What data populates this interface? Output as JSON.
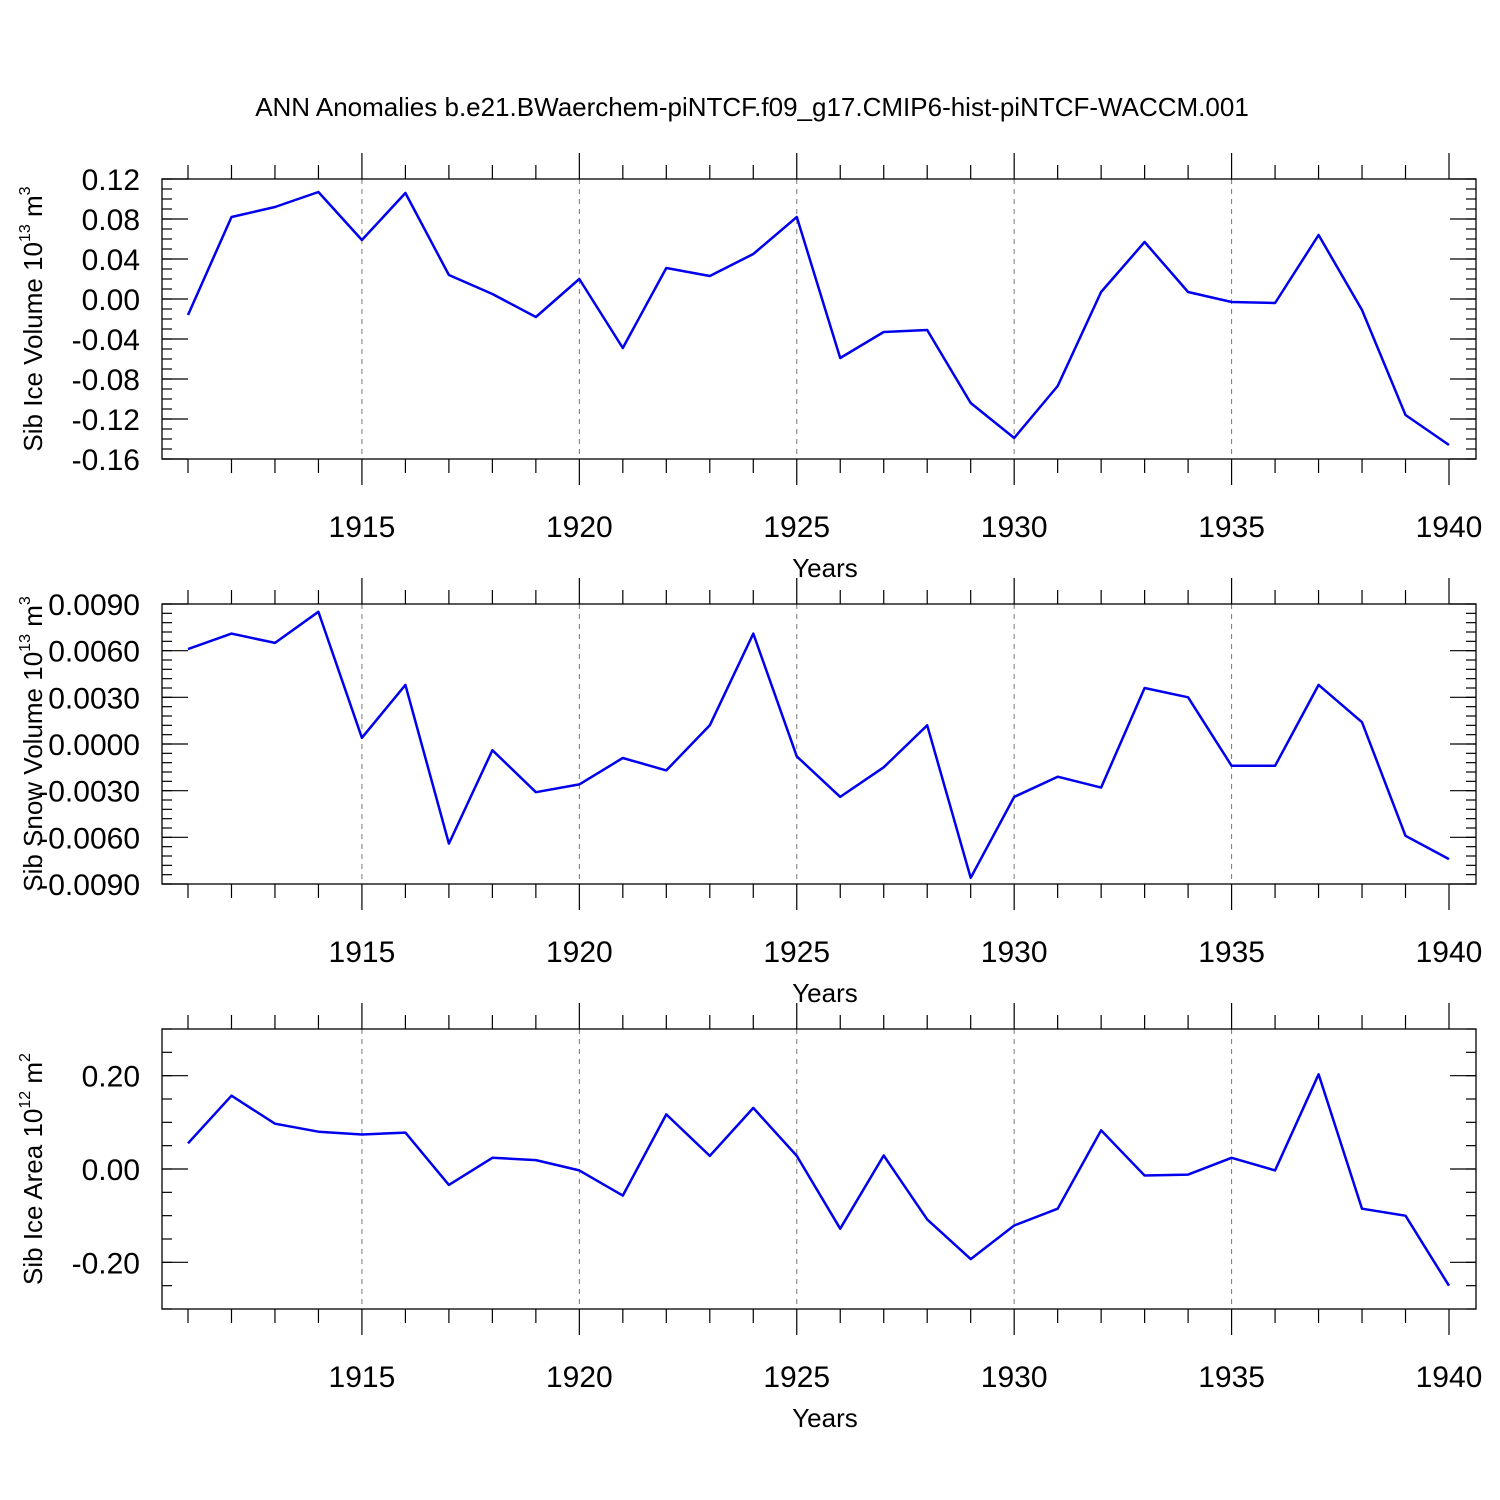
{
  "figure_title": "ANN Anomalies b.e21.BWaerchem-piNTCF.f09_g17.CMIP6-hist-piNTCF-WACCM.001",
  "chart_data": [
    {
      "type": "line",
      "ylabel": "Sib Ice Volume",
      "ylabel_multiplier": "10",
      "ylabel_exponent": "13",
      "ylabel_unit": "m",
      "ylabel_unit_exponent": "3",
      "xlabel": "Years",
      "xlim": [
        1911,
        1940
      ],
      "ylim": [
        -0.16,
        0.12
      ],
      "major_xticks": [
        1915,
        1920,
        1925,
        1930,
        1935,
        1940
      ],
      "major_xtick_labels": [
        "1915",
        "1920",
        "1925",
        "1930",
        "1935",
        "1940"
      ],
      "major_yticks": [
        0.12,
        0.08,
        0.04,
        0.0,
        -0.04,
        -0.08,
        -0.12,
        -0.16
      ],
      "major_ytick_labels": [
        "0.12",
        "0.08",
        "0.04",
        "0.00",
        "-0.04",
        "-0.08",
        "-0.12",
        "-0.16"
      ],
      "minor_ytick_step": 0.01,
      "grid": "dashed vertical at major x ticks",
      "color": "#0000ee",
      "x": [
        1911,
        1912,
        1913,
        1914,
        1915,
        1916,
        1917,
        1918,
        1919,
        1920,
        1921,
        1922,
        1923,
        1924,
        1925,
        1926,
        1927,
        1928,
        1929,
        1930,
        1931,
        1932,
        1933,
        1934,
        1935,
        1936,
        1937,
        1938,
        1939,
        1940
      ],
      "values": [
        -0.016,
        0.082,
        0.092,
        0.107,
        0.059,
        0.106,
        0.024,
        0.005,
        -0.018,
        0.02,
        -0.049,
        0.031,
        0.023,
        0.045,
        0.082,
        -0.059,
        -0.033,
        -0.031,
        -0.104,
        -0.139,
        -0.087,
        0.007,
        0.057,
        0.007,
        -0.003,
        -0.004,
        0.064,
        -0.011,
        -0.116,
        -0.146
      ]
    },
    {
      "type": "line",
      "ylabel": "Sib Snow Volume",
      "ylabel_multiplier": "10",
      "ylabel_exponent": "13",
      "ylabel_unit": "m",
      "ylabel_unit_exponent": "3",
      "xlabel": "Years",
      "xlim": [
        1911,
        1940
      ],
      "ylim": [
        -0.009,
        0.009
      ],
      "major_xticks": [
        1915,
        1920,
        1925,
        1930,
        1935,
        1940
      ],
      "major_xtick_labels": [
        "1915",
        "1920",
        "1925",
        "1930",
        "1935",
        "1940"
      ],
      "major_yticks": [
        0.009,
        0.006,
        0.003,
        0.0,
        -0.003,
        -0.006,
        -0.009
      ],
      "major_ytick_labels": [
        "0.0090",
        "0.0060",
        "0.0030",
        "0.0000",
        "-0.0030",
        "-0.0060",
        "-0.0090"
      ],
      "minor_ytick_step": 0.0006,
      "grid": "dashed vertical at major x ticks",
      "color": "#0000ee",
      "x": [
        1911,
        1912,
        1913,
        1914,
        1915,
        1916,
        1917,
        1918,
        1919,
        1920,
        1921,
        1922,
        1923,
        1924,
        1925,
        1926,
        1927,
        1928,
        1929,
        1930,
        1931,
        1932,
        1933,
        1934,
        1935,
        1936,
        1937,
        1938,
        1939,
        1940
      ],
      "values": [
        0.0061,
        0.0071,
        0.0065,
        0.0085,
        0.0004,
        0.0038,
        -0.0064,
        -0.0004,
        -0.0031,
        -0.0026,
        -0.0009,
        -0.0017,
        0.0012,
        0.0071,
        -0.0008,
        -0.0034,
        -0.0015,
        0.0012,
        -0.0086,
        -0.0034,
        -0.0021,
        -0.0028,
        0.0036,
        0.003,
        -0.0014,
        -0.0014,
        0.0038,
        0.0014,
        -0.0059,
        -0.0074
      ]
    },
    {
      "type": "line",
      "ylabel": "Sib Ice Area",
      "ylabel_multiplier": "10",
      "ylabel_exponent": "12",
      "ylabel_unit": "m",
      "ylabel_unit_exponent": "2",
      "xlabel": "Years",
      "xlim": [
        1911,
        1940
      ],
      "ylim": [
        -0.3,
        0.3
      ],
      "major_xticks": [
        1915,
        1920,
        1925,
        1930,
        1935,
        1940
      ],
      "major_xtick_labels": [
        "1915",
        "1920",
        "1925",
        "1930",
        "1935",
        "1940"
      ],
      "major_yticks": [
        0.2,
        0.0,
        -0.2
      ],
      "major_ytick_labels": [
        "0.20",
        "0.00",
        "-0.20"
      ],
      "minor_ytick_step": 0.05,
      "grid": "dashed vertical at major x ticks",
      "color": "#0000ee",
      "x": [
        1911,
        1912,
        1913,
        1914,
        1915,
        1916,
        1917,
        1918,
        1919,
        1920,
        1921,
        1922,
        1923,
        1924,
        1925,
        1926,
        1927,
        1928,
        1929,
        1930,
        1931,
        1932,
        1933,
        1934,
        1935,
        1936,
        1937,
        1938,
        1939,
        1940
      ],
      "values": [
        0.055,
        0.157,
        0.097,
        0.08,
        0.074,
        0.078,
        -0.034,
        0.024,
        0.019,
        -0.003,
        -0.057,
        0.117,
        0.028,
        0.131,
        0.028,
        -0.128,
        0.029,
        -0.108,
        -0.193,
        -0.121,
        -0.085,
        0.083,
        -0.014,
        -0.012,
        0.024,
        -0.003,
        0.203,
        -0.085,
        -0.1,
        -0.25
      ]
    }
  ]
}
